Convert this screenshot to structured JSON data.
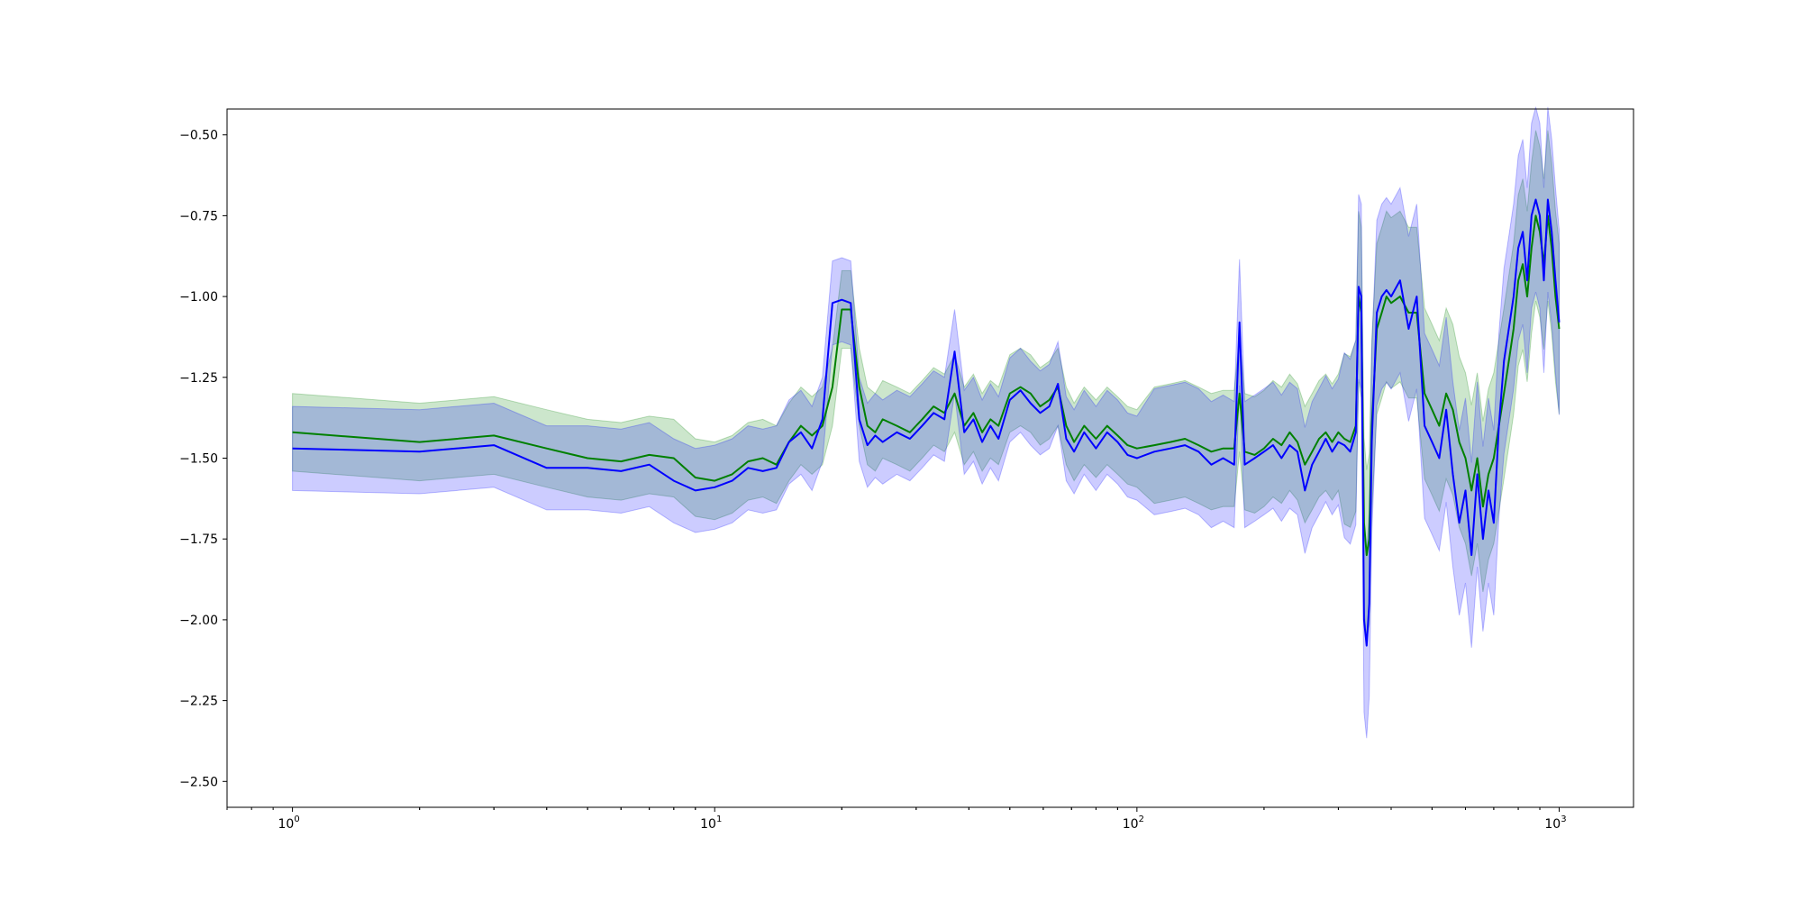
{
  "chart_data": {
    "type": "line",
    "title": "",
    "xlabel": "",
    "ylabel": "",
    "x_scale": "log",
    "xlim": [
      0.7,
      1500
    ],
    "ylim": [
      -2.58,
      -0.42
    ],
    "grid": false,
    "x_ticks": [
      {
        "value": 1,
        "label": "10",
        "exp": "0"
      },
      {
        "value": 10,
        "label": "10",
        "exp": "1"
      },
      {
        "value": 100,
        "label": "10",
        "exp": "2"
      },
      {
        "value": 1000,
        "label": "10",
        "exp": "3"
      }
    ],
    "y_ticks": [
      {
        "value": -0.5,
        "label": "−0.50"
      },
      {
        "value": -0.75,
        "label": "−0.75"
      },
      {
        "value": -1.0,
        "label": "−1.00"
      },
      {
        "value": -1.25,
        "label": "−1.25"
      },
      {
        "value": -1.5,
        "label": "−1.50"
      },
      {
        "value": -1.75,
        "label": "−1.75"
      },
      {
        "value": -2.0,
        "label": "−2.00"
      },
      {
        "value": -2.25,
        "label": "−2.25"
      },
      {
        "value": -2.5,
        "label": "−2.50"
      }
    ],
    "series": [
      {
        "color": "#008000",
        "band_color": "#008000",
        "band_opacity": 0.2,
        "band_width": 0.12,
        "x": [
          1,
          2,
          3,
          4,
          5,
          6,
          7,
          8,
          9,
          10,
          11,
          12,
          13,
          14,
          15,
          16,
          17,
          18,
          19,
          20,
          21,
          22,
          23,
          24,
          25,
          27,
          29,
          31,
          33,
          35,
          37,
          39,
          41,
          43,
          45,
          47,
          50,
          53,
          56,
          59,
          62,
          65,
          68,
          71,
          75,
          80,
          85,
          90,
          95,
          100,
          110,
          120,
          130,
          140,
          150,
          160,
          170,
          175,
          180,
          190,
          200,
          210,
          220,
          230,
          240,
          250,
          260,
          270,
          280,
          290,
          300,
          310,
          320,
          330,
          335,
          340,
          345,
          350,
          355,
          360,
          370,
          380,
          390,
          400,
          420,
          440,
          460,
          480,
          500,
          520,
          540,
          560,
          580,
          600,
          620,
          640,
          660,
          680,
          700,
          720,
          740,
          760,
          780,
          800,
          820,
          840,
          860,
          880,
          900,
          920,
          940,
          960,
          980,
          1000
        ],
        "y": [
          -1.42,
          -1.45,
          -1.43,
          -1.47,
          -1.5,
          -1.51,
          -1.49,
          -1.5,
          -1.56,
          -1.57,
          -1.55,
          -1.51,
          -1.5,
          -1.52,
          -1.45,
          -1.4,
          -1.43,
          -1.4,
          -1.28,
          -1.04,
          -1.04,
          -1.28,
          -1.4,
          -1.42,
          -1.38,
          -1.4,
          -1.42,
          -1.38,
          -1.34,
          -1.36,
          -1.3,
          -1.4,
          -1.36,
          -1.42,
          -1.38,
          -1.4,
          -1.3,
          -1.28,
          -1.3,
          -1.34,
          -1.32,
          -1.28,
          -1.4,
          -1.45,
          -1.4,
          -1.44,
          -1.4,
          -1.43,
          -1.46,
          -1.47,
          -1.46,
          -1.45,
          -1.44,
          -1.46,
          -1.48,
          -1.47,
          -1.47,
          -1.3,
          -1.48,
          -1.49,
          -1.47,
          -1.44,
          -1.46,
          -1.42,
          -1.45,
          -1.52,
          -1.48,
          -1.44,
          -1.42,
          -1.45,
          -1.42,
          -1.44,
          -1.45,
          -1.4,
          -1.0,
          -1.05,
          -1.7,
          -1.8,
          -1.75,
          -1.4,
          -1.1,
          -1.05,
          -1.0,
          -1.02,
          -1.0,
          -1.05,
          -1.05,
          -1.3,
          -1.35,
          -1.4,
          -1.3,
          -1.35,
          -1.45,
          -1.5,
          -1.6,
          -1.5,
          -1.65,
          -1.55,
          -1.5,
          -1.4,
          -1.3,
          -1.2,
          -1.1,
          -0.95,
          -0.9,
          -1.0,
          -0.85,
          -0.75,
          -0.8,
          -0.9,
          -0.75,
          -0.85,
          -1.0,
          -1.1
        ]
      },
      {
        "color": "#0000ff",
        "band_color": "#0000ff",
        "band_opacity": 0.2,
        "band_width": 0.13,
        "x": [
          1,
          2,
          3,
          4,
          5,
          6,
          7,
          8,
          9,
          10,
          11,
          12,
          13,
          14,
          15,
          16,
          17,
          18,
          19,
          20,
          21,
          22,
          23,
          24,
          25,
          27,
          29,
          31,
          33,
          35,
          37,
          39,
          41,
          43,
          45,
          47,
          50,
          53,
          56,
          59,
          62,
          65,
          68,
          71,
          75,
          80,
          85,
          90,
          95,
          100,
          110,
          120,
          130,
          140,
          150,
          160,
          170,
          175,
          180,
          190,
          200,
          210,
          220,
          230,
          240,
          250,
          260,
          270,
          280,
          290,
          300,
          310,
          320,
          330,
          335,
          340,
          345,
          350,
          355,
          360,
          370,
          380,
          390,
          400,
          420,
          440,
          460,
          480,
          500,
          520,
          540,
          560,
          580,
          600,
          620,
          640,
          660,
          680,
          700,
          720,
          740,
          760,
          780,
          800,
          820,
          840,
          860,
          880,
          900,
          920,
          940,
          960,
          980,
          1000
        ],
        "y": [
          -1.47,
          -1.48,
          -1.46,
          -1.53,
          -1.53,
          -1.54,
          -1.52,
          -1.57,
          -1.6,
          -1.59,
          -1.57,
          -1.53,
          -1.54,
          -1.53,
          -1.45,
          -1.42,
          -1.47,
          -1.38,
          -1.02,
          -1.01,
          -1.02,
          -1.38,
          -1.46,
          -1.43,
          -1.45,
          -1.42,
          -1.44,
          -1.4,
          -1.36,
          -1.38,
          -1.17,
          -1.42,
          -1.38,
          -1.45,
          -1.4,
          -1.44,
          -1.32,
          -1.29,
          -1.33,
          -1.36,
          -1.34,
          -1.27,
          -1.44,
          -1.48,
          -1.42,
          -1.47,
          -1.42,
          -1.45,
          -1.49,
          -1.5,
          -1.48,
          -1.47,
          -1.46,
          -1.48,
          -1.52,
          -1.5,
          -1.52,
          -1.08,
          -1.52,
          -1.5,
          -1.48,
          -1.46,
          -1.5,
          -1.46,
          -1.48,
          -1.6,
          -1.52,
          -1.48,
          -1.44,
          -1.48,
          -1.45,
          -1.46,
          -1.48,
          -1.42,
          -0.97,
          -1.0,
          -2.0,
          -2.08,
          -1.95,
          -1.45,
          -1.05,
          -1.0,
          -0.98,
          -1.0,
          -0.95,
          -1.1,
          -1.0,
          -1.4,
          -1.45,
          -1.5,
          -1.35,
          -1.55,
          -1.7,
          -1.6,
          -1.8,
          -1.55,
          -1.75,
          -1.6,
          -1.7,
          -1.4,
          -1.2,
          -1.1,
          -1.0,
          -0.85,
          -0.8,
          -0.95,
          -0.75,
          -0.7,
          -0.75,
          -0.95,
          -0.7,
          -0.8,
          -0.95,
          -1.08
        ]
      }
    ]
  }
}
